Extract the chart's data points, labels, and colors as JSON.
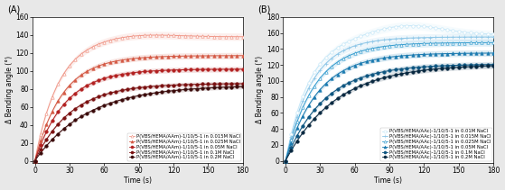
{
  "panel_A": {
    "title": "(A)",
    "xlabel": "Time (s)",
    "ylabel": "Δ Bending angle (°)",
    "ylim": [
      -2,
      160
    ],
    "yticks": [
      0,
      20,
      40,
      60,
      80,
      100,
      120,
      140,
      160
    ],
    "xlim": [
      -2,
      180
    ],
    "xticks": [
      0,
      30,
      60,
      90,
      120,
      150,
      180
    ],
    "series": [
      {
        "label": "P(VBS/HEMA/AAm)-1/10/5-1 in 0.015M NaCl",
        "color": "#f0998a",
        "marker": "^",
        "filled": false,
        "plateau": 138,
        "k": 0.048,
        "has_peak": true,
        "peak_t": 90,
        "peak_extra": 3
      },
      {
        "label": "P(VBS/HEMA/AAm)-1/10/5-1 in 0.025M NaCl",
        "color": "#d45a45",
        "marker": "^",
        "filled": true,
        "plateau": 117,
        "k": 0.042,
        "has_peak": false,
        "peak_t": 0,
        "peak_extra": 0
      },
      {
        "label": "P(VBS/HEMA/AAm)-1/10/5-1 in 0.05M NaCl",
        "color": "#b22020",
        "marker": "o",
        "filled": true,
        "plateau": 102,
        "k": 0.038,
        "has_peak": false,
        "peak_t": 0,
        "peak_extra": 0
      },
      {
        "label": "P(VBS/HEMA/AAm)-1/10/5-1 in 0.1M NaCl",
        "color": "#7a1010",
        "marker": "o",
        "filled": true,
        "plateau": 86,
        "k": 0.032,
        "has_peak": false,
        "peak_t": 0,
        "peak_extra": 0
      },
      {
        "label": "P(VBS/HEMA/AAm)-1/10/5-1 in 0.2M NaCl",
        "color": "#3a0a0a",
        "marker": "o",
        "filled": true,
        "plateau": 84,
        "k": 0.022,
        "has_peak": false,
        "peak_t": 0,
        "peak_extra": 0
      }
    ]
  },
  "panel_B": {
    "title": "(B)",
    "xlabel": "Time (s)",
    "ylabel": "Δ Bending angle (°)",
    "ylim": [
      -2,
      180
    ],
    "yticks": [
      0,
      20,
      40,
      60,
      80,
      100,
      120,
      140,
      160,
      180
    ],
    "xlim": [
      -2,
      180
    ],
    "xticks": [
      0,
      30,
      60,
      90,
      120,
      150,
      180
    ],
    "series": [
      {
        "label": "P(VBS/HEMA/AAc)-1/10/5-1 in 0.01M NaCl",
        "color": "#c8e8f8",
        "marker": "o",
        "filled": false,
        "plateau": 158,
        "k": 0.048,
        "has_peak": true,
        "peak_t": 105,
        "peak_extra": 12
      },
      {
        "label": "P(VBS/HEMA/AAc)-1/10/5-1 in 0.015M NaCl",
        "color": "#90c8e8",
        "marker": "+",
        "filled": false,
        "plateau": 155,
        "k": 0.044,
        "has_peak": false,
        "peak_t": 0,
        "peak_extra": 0
      },
      {
        "label": "P(VBS/HEMA/AAc)-1/10/5-1 in 0.025M NaCl",
        "color": "#3a9fd0",
        "marker": "^",
        "filled": false,
        "plateau": 148,
        "k": 0.04,
        "has_peak": false,
        "peak_t": 0,
        "peak_extra": 0
      },
      {
        "label": "P(VBS/HEMA/AAc)-1/10/5-1 in 0.05M NaCl",
        "color": "#1a7ab0",
        "marker": "^",
        "filled": true,
        "plateau": 135,
        "k": 0.036,
        "has_peak": false,
        "peak_t": 0,
        "peak_extra": 0
      },
      {
        "label": "P(VBS/HEMA/AAc)-1/10/5-1 in 0.1M NaCl",
        "color": "#0d5580",
        "marker": "o",
        "filled": true,
        "plateau": 121,
        "k": 0.03,
        "has_peak": false,
        "peak_t": 0,
        "peak_extra": 0
      },
      {
        "label": "P(VBS/HEMA/AAc)-1/10/5-1 in 0.2M NaCl",
        "color": "#082840",
        "marker": "o",
        "filled": true,
        "plateau": 121,
        "k": 0.023,
        "has_peak": false,
        "peak_t": 0,
        "peak_extra": 0
      }
    ]
  },
  "figure_bg": "#e8e8e8",
  "axes_bg": "#ffffff",
  "font_size": 5.5,
  "legend_font_size": 3.8,
  "marker_size": 2.5,
  "line_width": 0.75
}
